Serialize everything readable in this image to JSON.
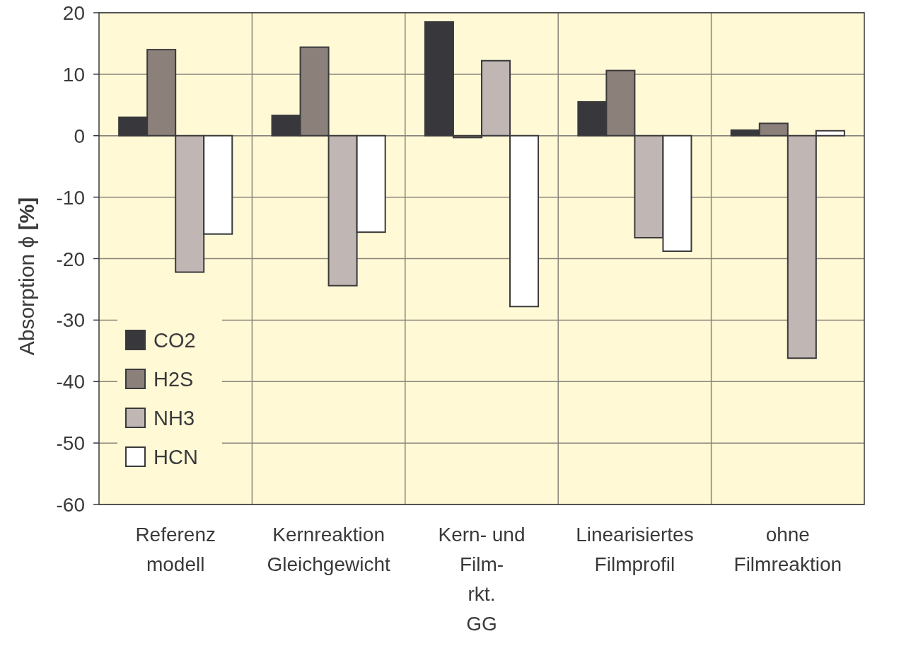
{
  "chart_data": {
    "type": "bar",
    "ylabel": "Absorption  ϕ [%]",
    "categories": [
      "Referenz\nmodell",
      "Kernreaktion\nGleichgewicht",
      "Kern- und\nFilm-\nrkt.\nGG",
      "Linearisiertes\nFilmprofil",
      "ohne\nFilmreaktion"
    ],
    "series": [
      {
        "name": "CO2",
        "color": "#38373c",
        "values": [
          3.0,
          3.3,
          18.5,
          5.5,
          0.9
        ]
      },
      {
        "name": "H2S",
        "color": "#8c807b",
        "values": [
          14.0,
          14.4,
          -0.3,
          10.6,
          2.0
        ]
      },
      {
        "name": "NH3",
        "color": "#c0b6b4",
        "values": [
          -22.2,
          -24.4,
          12.2,
          -16.6,
          -36.2
        ]
      },
      {
        "name": "HCN",
        "color": "#ffffff",
        "values": [
          -16.0,
          -15.7,
          -27.8,
          -18.8,
          0.8
        ]
      }
    ],
    "ylim": [
      -60,
      20
    ],
    "yticks": [
      20,
      10,
      0,
      -10,
      -20,
      -30,
      -40,
      -50,
      -60
    ],
    "grid": true,
    "legend": "bottom left"
  }
}
